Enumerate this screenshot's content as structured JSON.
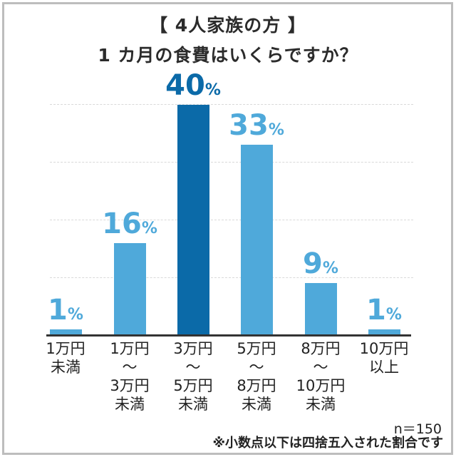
{
  "title": {
    "line1": "【 4人家族の方 】",
    "line2": "1 カ月の食費はいくらですか？"
  },
  "colors": {
    "bar_default": "#4fa9da",
    "bar_highlight": "#0b6aa8",
    "label_default": "#4fa9da",
    "label_highlight": "#0b6aa8"
  },
  "bars": [
    {
      "label": "1万円\n未満",
      "value": 1,
      "num": "1",
      "pct": "%"
    },
    {
      "label": "1万円\n〜\n3万円\n未満",
      "value": 16,
      "num": "16",
      "pct": "%"
    },
    {
      "label": "3万円\n〜\n5万円\n未満",
      "value": 40,
      "num": "40",
      "pct": "%"
    },
    {
      "label": "5万円\n〜\n8万円\n未満",
      "value": 33,
      "num": "33",
      "pct": "%"
    },
    {
      "label": "8万円\n〜\n10万円\n未満",
      "value": 9,
      "num": "9",
      "pct": "%"
    },
    {
      "label": "10万円\n以上",
      "value": 1,
      "num": "1",
      "pct": "%"
    }
  ],
  "footer": {
    "n": "n＝150",
    "note": "※小数点以下は四捨五入された割合です"
  },
  "chart_data": {
    "type": "bar",
    "title": "【 4人家族の方 】 1 カ月の食費はいくらですか？",
    "categories": [
      "1万円未満",
      "1万円〜3万円未満",
      "3万円〜5万円未満",
      "5万円〜8万円未満",
      "8万円〜10万円未満",
      "10万円以上"
    ],
    "values": [
      1,
      16,
      40,
      33,
      9,
      1
    ],
    "unit": "%",
    "xlabel": "",
    "ylabel": "",
    "ylim": [
      0,
      40
    ],
    "grid": true,
    "highlight_index": 2,
    "annotations": [
      "n＝150",
      "※小数点以下は四捨五入された割合です"
    ]
  }
}
